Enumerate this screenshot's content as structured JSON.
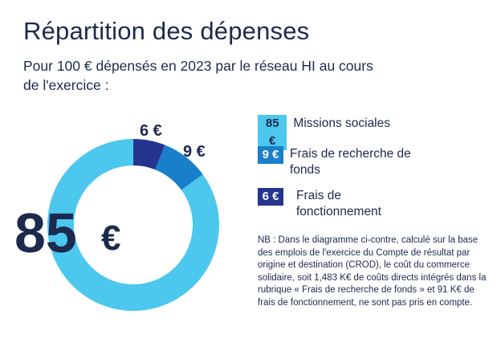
{
  "title": "Répartition des dépenses",
  "subtitle": "Pour 100 € dépensés en 2023 par le réseau HI au cours de l'exercice :",
  "chart_data": {
    "type": "pie",
    "variant": "donut",
    "title": "Répartition des dépenses",
    "unit": "€",
    "center_value": "85",
    "center_unit": "€",
    "segments": [
      {
        "label": "Missions sociales",
        "value": 85,
        "display": "85 €",
        "color": "#4cc7ee",
        "badge_text_color": "#1d2a4d"
      },
      {
        "label": "Frais de recherche de fonds",
        "value": 9,
        "display": "9 €",
        "color": "#1a7fcb",
        "badge_text_color": "#ffffff"
      },
      {
        "label": "Frais de fonctionnement",
        "value": 6,
        "display": "6 €",
        "color": "#25358f",
        "badge_text_color": "#ffffff"
      }
    ]
  },
  "legend": [
    {
      "badge": "85 €",
      "label": "Missions sociales"
    },
    {
      "badge": "9 €",
      "label": "Frais de recherche de fonds"
    },
    {
      "badge": "6 €",
      "label": "Frais de fonctionnement"
    }
  ],
  "note": "NB : Dans le diagramme ci-contre, calculé sur la base des emplois de l'exercice du Compte de résultat par origine et destination (CROD), le coût du commerce solidaire, soit 1,483 K€ de coûts directs intégrés dans la rubrique « Frais de recherche de fonds » et 91 K€ de frais de fonctionnement, ne sont pas pris en compte."
}
